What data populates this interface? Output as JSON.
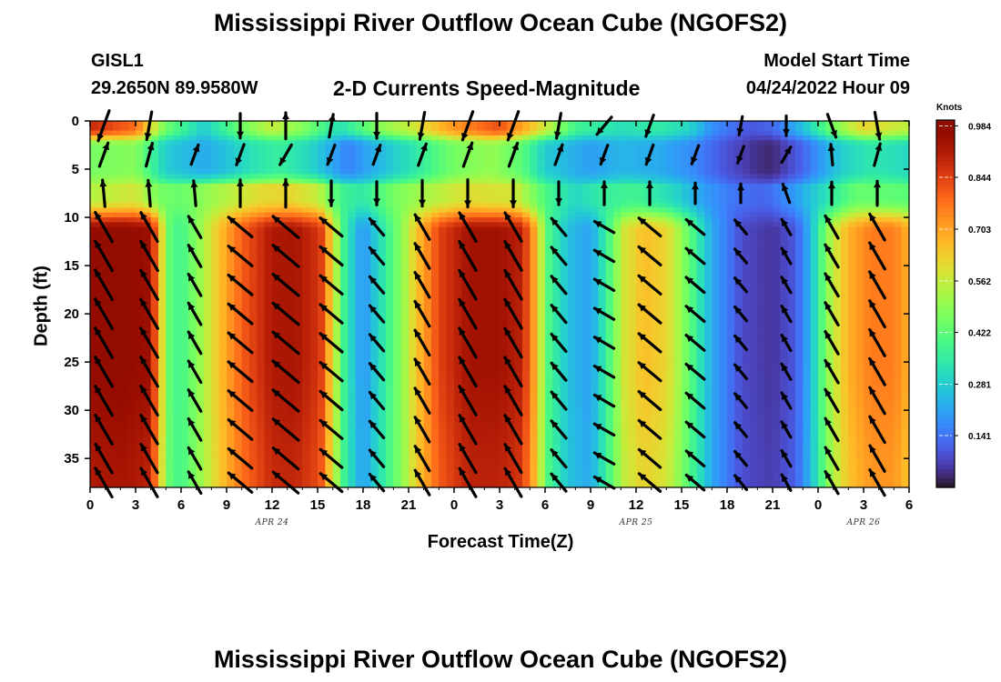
{
  "title": "Mississippi River Outflow Ocean Cube (NGOFS2)",
  "title_bottom": "Mississippi River Outflow Ocean Cube (NGOFS2)",
  "station": {
    "id": "GISL1",
    "coords": "29.2650N  89.9580W"
  },
  "subtitle": "2-D Currents Speed-Magnitude",
  "model_start": {
    "label": "Model Start Time",
    "value": "04/24/2022 Hour 09"
  },
  "chart_data": {
    "type": "heatmap",
    "title": "2-D Currents Speed-Magnitude",
    "xlabel": "Forecast Time(Z)",
    "ylabel": "Depth (ft)",
    "x_unit": "hours since 00Z Apr 24, 2022",
    "xlim": [
      0,
      54
    ],
    "ylim": [
      0,
      38
    ],
    "y_inverted": true,
    "x_ticks": [
      0,
      3,
      6,
      9,
      12,
      15,
      18,
      21,
      24,
      27,
      30,
      33,
      36,
      39,
      42,
      45,
      48,
      51,
      54
    ],
    "x_tick_labels": [
      "0",
      "3",
      "6",
      "9",
      "12",
      "15",
      "18",
      "21",
      "0",
      "3",
      "6",
      "9",
      "12",
      "15",
      "18",
      "21",
      "0",
      "3",
      "6"
    ],
    "y_ticks": [
      0,
      5,
      10,
      15,
      20,
      25,
      30,
      35
    ],
    "y_tick_labels": [
      "0",
      "5",
      "10",
      "15",
      "20",
      "25",
      "30",
      "35"
    ],
    "date_labels": [
      {
        "hour": 12,
        "text": "APR 24"
      },
      {
        "hour": 36,
        "text": "APR 25"
      },
      {
        "hour": 51,
        "text": "APR 26"
      }
    ],
    "colorbar": {
      "label": "Knots",
      "min": 0.0,
      "max": 1.0,
      "tick_values": [
        0.984,
        0.844,
        0.703,
        0.562,
        0.422,
        0.281,
        0.141
      ],
      "tick_labels": [
        "0.984",
        "0.844",
        "0.703",
        "0.562",
        "0.422",
        "0.281",
        "0.141"
      ],
      "colormap": "turbo"
    },
    "depth_levels_ft": [
      0.5,
      3.5,
      7.5,
      11,
      14,
      17,
      20,
      23,
      26,
      29,
      32,
      35,
      37.5
    ],
    "speed_profiles_knots": {
      "surface_0_to_2ft": [
        [
          0,
          0.88
        ],
        [
          3,
          0.78
        ],
        [
          5,
          0.45
        ],
        [
          7.5,
          0.28
        ],
        [
          10,
          0.45
        ],
        [
          12,
          0.56
        ],
        [
          14,
          0.48
        ],
        [
          16.5,
          0.32
        ],
        [
          19,
          0.48
        ],
        [
          21,
          0.56
        ],
        [
          24,
          0.72
        ],
        [
          27,
          0.82
        ],
        [
          29.5,
          0.62
        ],
        [
          32,
          0.38
        ],
        [
          35,
          0.32
        ],
        [
          37.5,
          0.35
        ],
        [
          39.5,
          0.3
        ],
        [
          41,
          0.18
        ],
        [
          43.5,
          0.1
        ],
        [
          45,
          0.12
        ],
        [
          47,
          0.26
        ],
        [
          49,
          0.46
        ],
        [
          51,
          0.62
        ],
        [
          54,
          0.55
        ]
      ],
      "near_surface_2_to_6ft": [
        [
          0,
          0.46
        ],
        [
          3,
          0.48
        ],
        [
          5,
          0.28
        ],
        [
          7.5,
          0.22
        ],
        [
          9,
          0.26
        ],
        [
          10.5,
          0.32
        ],
        [
          12.5,
          0.36
        ],
        [
          14.5,
          0.3
        ],
        [
          17,
          0.16
        ],
        [
          19,
          0.24
        ],
        [
          21.5,
          0.34
        ],
        [
          24,
          0.46
        ],
        [
          26.5,
          0.5
        ],
        [
          28.5,
          0.42
        ],
        [
          30,
          0.28
        ],
        [
          33,
          0.2
        ],
        [
          35,
          0.24
        ],
        [
          37.5,
          0.22
        ],
        [
          39.5,
          0.18
        ],
        [
          42,
          0.09
        ],
        [
          44,
          0.04
        ],
        [
          45,
          0.03
        ],
        [
          47,
          0.12
        ],
        [
          49.5,
          0.28
        ],
        [
          51.5,
          0.34
        ],
        [
          54,
          0.3
        ]
      ],
      "thermocline_6_to_10ft": [
        [
          0,
          0.54
        ],
        [
          3,
          0.58
        ],
        [
          4.5,
          0.46
        ],
        [
          6,
          0.44
        ],
        [
          9,
          0.54
        ],
        [
          11,
          0.6
        ],
        [
          13,
          0.62
        ],
        [
          15,
          0.56
        ],
        [
          16.5,
          0.38
        ],
        [
          18,
          0.34
        ],
        [
          20,
          0.46
        ],
        [
          22,
          0.52
        ],
        [
          25,
          0.6
        ],
        [
          28,
          0.58
        ],
        [
          30,
          0.4
        ],
        [
          32,
          0.3
        ],
        [
          34,
          0.36
        ],
        [
          36,
          0.38
        ],
        [
          38.5,
          0.3
        ],
        [
          40.5,
          0.2
        ],
        [
          42.5,
          0.14
        ],
        [
          44.5,
          0.12
        ],
        [
          46.5,
          0.2
        ],
        [
          48.5,
          0.32
        ],
        [
          50.5,
          0.44
        ],
        [
          54,
          0.42
        ]
      ],
      "subsurface_10_to_38ft": [
        [
          0,
          0.97
        ],
        [
          2,
          0.98
        ],
        [
          4,
          0.95
        ],
        [
          4.7,
          0.62
        ],
        [
          5.4,
          0.38
        ],
        [
          6.2,
          0.4
        ],
        [
          7.2,
          0.5
        ],
        [
          8.5,
          0.65
        ],
        [
          10,
          0.8
        ],
        [
          12,
          0.92
        ],
        [
          13.5,
          0.93
        ],
        [
          15.2,
          0.86
        ],
        [
          16,
          0.6
        ],
        [
          16.8,
          0.36
        ],
        [
          18,
          0.18
        ],
        [
          19,
          0.3
        ],
        [
          20.5,
          0.48
        ],
        [
          21.5,
          0.64
        ],
        [
          23,
          0.84
        ],
        [
          25,
          0.94
        ],
        [
          27,
          0.94
        ],
        [
          28.5,
          0.9
        ],
        [
          29.3,
          0.7
        ],
        [
          30.2,
          0.4
        ],
        [
          31.5,
          0.26
        ],
        [
          33,
          0.2
        ],
        [
          34,
          0.36
        ],
        [
          35.2,
          0.58
        ],
        [
          36.5,
          0.66
        ],
        [
          38,
          0.62
        ],
        [
          39,
          0.5
        ],
        [
          40,
          0.36
        ],
        [
          41,
          0.22
        ],
        [
          43,
          0.08
        ],
        [
          45,
          0.05
        ],
        [
          46.5,
          0.1
        ],
        [
          47.5,
          0.24
        ],
        [
          48.2,
          0.4
        ],
        [
          49,
          0.56
        ],
        [
          50,
          0.68
        ],
        [
          51.5,
          0.76
        ],
        [
          53,
          0.76
        ],
        [
          54,
          0.68
        ]
      ]
    },
    "vector_times_hours": [
      0,
      3,
      6,
      9,
      12,
      15,
      18,
      21,
      24,
      27,
      30,
      33,
      36,
      39,
      42,
      45,
      48,
      51
    ],
    "vector_direction_deg_by_layer": {
      "surface_0_to_2ft": [
        200,
        190,
        null,
        180,
        0,
        10,
        180,
        190,
        200,
        200,
        190,
        220,
        200,
        null,
        190,
        180,
        160,
        170
      ],
      "near_surface_2_to_6ft": [
        20,
        15,
        20,
        200,
        210,
        200,
        20,
        20,
        20,
        20,
        20,
        200,
        200,
        200,
        200,
        30,
        355,
        15
      ],
      "thermocline_6_to_10ft": [
        355,
        355,
        355,
        360,
        360,
        180,
        180,
        180,
        180,
        180,
        180,
        0,
        0,
        0,
        0,
        340,
        0,
        0
      ],
      "subsurface_10_to_38ft": [
        330,
        330,
        330,
        310,
        310,
        310,
        320,
        330,
        330,
        330,
        320,
        300,
        310,
        310,
        320,
        330,
        330,
        330
      ]
    }
  }
}
